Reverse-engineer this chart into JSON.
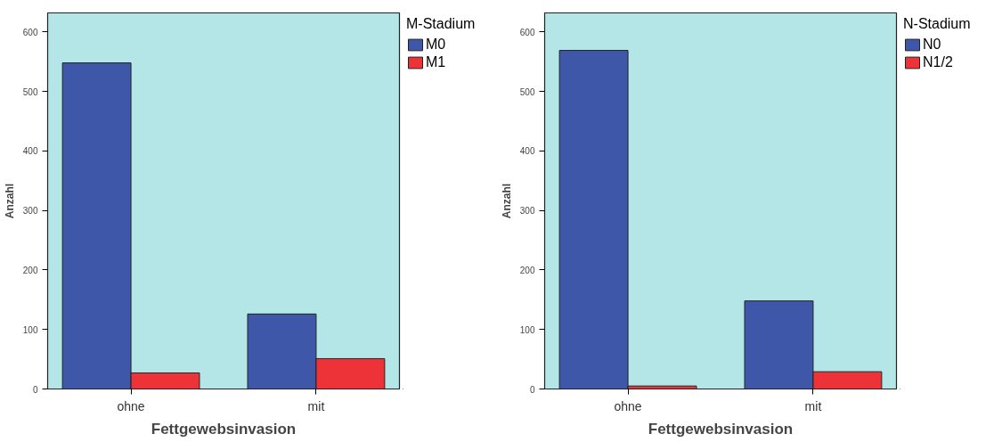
{
  "chart_data": [
    {
      "type": "bar",
      "xlabel": "Fettgewebsinvasion",
      "ylabel": "Anzahl",
      "legend_title": "M-Stadium",
      "categories": [
        "ohne",
        "mit"
      ],
      "ylim": [
        0,
        632
      ],
      "yticks": [
        0,
        100,
        200,
        300,
        400,
        500,
        600
      ],
      "grid": false,
      "legend": "right",
      "series": [
        {
          "name": "M0",
          "color": "#3f57a8",
          "values": [
            548,
            126
          ]
        },
        {
          "name": "M1",
          "color": "#ee3338",
          "values": [
            27,
            51
          ]
        }
      ]
    },
    {
      "type": "bar",
      "xlabel": "Fettgewebsinvasion",
      "ylabel": "Anzahl",
      "legend_title": "N-Stadium",
      "categories": [
        "ohne",
        "mit"
      ],
      "ylim": [
        0,
        632
      ],
      "yticks": [
        0,
        100,
        200,
        300,
        400,
        500,
        600
      ],
      "grid": false,
      "legend": "right",
      "series": [
        {
          "name": "N0",
          "color": "#3f57a8",
          "values": [
            569,
            148
          ]
        },
        {
          "name": "N1/2",
          "color": "#ee3338",
          "values": [
            5,
            29
          ]
        }
      ]
    }
  ]
}
